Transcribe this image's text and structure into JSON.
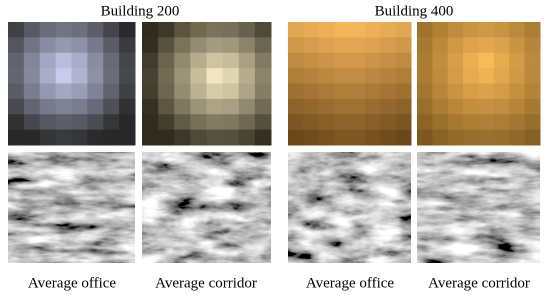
{
  "groups": [
    {
      "title": "Building 200",
      "captions": [
        "Average office",
        "Average corridor"
      ]
    },
    {
      "title": "Building 400",
      "captions": [
        "Average office",
        "Average corridor"
      ]
    }
  ]
}
